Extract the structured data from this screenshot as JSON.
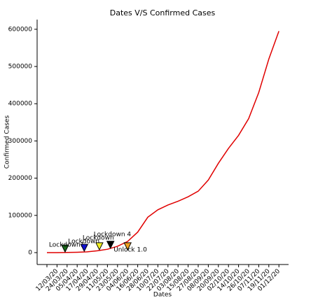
{
  "chart_data": {
    "type": "line",
    "title": "Dates V/S Confirmed Cases",
    "x_label": "Dates",
    "y_label": "Confirmed Cases",
    "categories": [
      null,
      "12/03/20",
      "24/03/20",
      "05/04/20",
      "17/04/20",
      "29/04/20",
      "11/05/20",
      "23/05/20",
      "04/06/20",
      "16/06/20",
      "28/06/20",
      "10/07/20",
      "22/07/20",
      "03/08/20",
      "15/08/20",
      "27/08/20",
      "08/09/20",
      "20/09/20",
      "02/10/20",
      "14/10/20",
      "26/10/20",
      "07/11/20",
      "19/11/20",
      "01/12/20"
    ],
    "series": [
      {
        "name": "Confirmed Cases",
        "color": "#e00000",
        "values": [
          0,
          0,
          500,
          1000,
          2000,
          5000,
          9000,
          17000,
          30000,
          55000,
          95000,
          115000,
          128000,
          138000,
          150000,
          165000,
          195000,
          240000,
          280000,
          315000,
          360000,
          430000,
          520000,
          595000
        ]
      }
    ],
    "annotations": [
      {
        "text": "Lockdown1",
        "x": 1.8,
        "y": 11000,
        "color": "#1a6b1a"
      },
      {
        "text": "Lockdown",
        "x": 3.7,
        "y": 13000,
        "color": "#1010d0"
      },
      {
        "text": "Lockdown",
        "x": 5.2,
        "y": 17000,
        "color": "#f0f020"
      },
      {
        "text": "Lockdown 4",
        "x": 6.3,
        "y": 21000,
        "color": "#000000"
      },
      {
        "text": "Unlock 1.0",
        "x": 8.0,
        "y": 17000,
        "color": "#f0a020"
      }
    ],
    "ylim": [
      -32000,
      626000
    ],
    "yticks": [
      0,
      100000,
      200000,
      300000,
      400000,
      500000,
      600000
    ],
    "grid": false
  }
}
